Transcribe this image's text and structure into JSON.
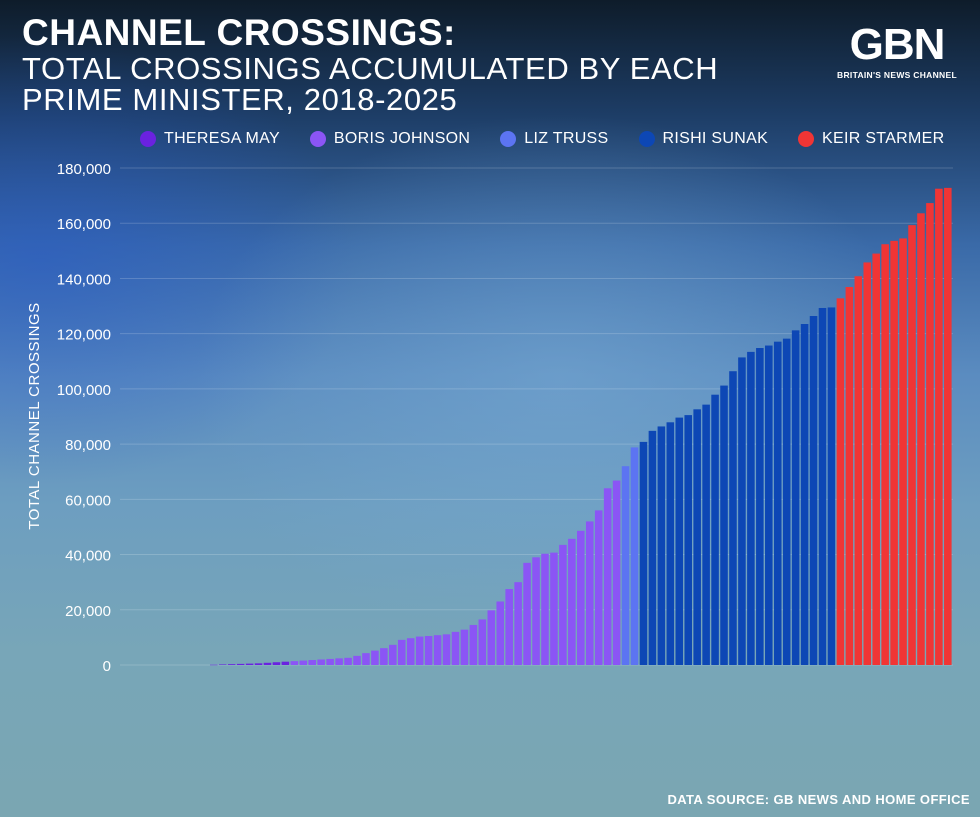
{
  "header": {
    "title_line1": "CHANNEL CROSSINGS:",
    "title_line2": "TOTAL CROSSINGS ACCUMULATED BY EACH",
    "title_line3": "PRIME MINISTER, 2018-2025"
  },
  "logo": {
    "mark": "GBN",
    "tagline": "BRITAIN'S NEWS CHANNEL"
  },
  "legend": {
    "items": [
      {
        "label": "THERESA MAY",
        "color": "#6a22e0"
      },
      {
        "label": "BORIS JOHNSON",
        "color": "#8b55f5"
      },
      {
        "label": "LIZ TRUSS",
        "color": "#5c74f2"
      },
      {
        "label": "RISHI SUNAK",
        "color": "#0d47b5"
      },
      {
        "label": "KEIR STARMER",
        "color": "#f03535"
      }
    ]
  },
  "footer": {
    "source": "DATA SOURCE: GB NEWS AND HOME OFFICE"
  },
  "chart_data": {
    "type": "bar",
    "ylabel": "TOTAL CHANNEL CROSSINGS",
    "ylim": [
      0,
      180000
    ],
    "yticks": [
      0,
      20000,
      40000,
      60000,
      80000,
      100000,
      120000,
      140000,
      160000,
      180000
    ],
    "ytick_labels": [
      "0",
      "20,000",
      "40,000",
      "60,000",
      "80,000",
      "100,000",
      "120,000",
      "140,000",
      "160,000",
      "180,000"
    ],
    "grid": true,
    "legend_position": "top",
    "series": [
      {
        "name": "THERESA MAY",
        "color": "#6a22e0",
        "values": [
          100,
          200,
          300,
          400,
          500,
          600,
          800,
          1000,
          1200
        ]
      },
      {
        "name": "BORIS JOHNSON",
        "color": "#8b55f5",
        "values": [
          1400,
          1600,
          1800,
          2000,
          2200,
          2400,
          2600,
          3300,
          4300,
          5200,
          6100,
          7300,
          9100,
          9700,
          10300,
          10500,
          10800,
          11100,
          12000,
          12800,
          14500,
          16500,
          19800,
          23000,
          27500,
          30000,
          37000,
          39000,
          40300,
          40700,
          43500,
          45700,
          48600,
          52000,
          56000,
          64000,
          66800
        ]
      },
      {
        "name": "LIZ TRUSS",
        "color": "#5c74f2",
        "values": [
          72000,
          78800
        ]
      },
      {
        "name": "RISHI SUNAK",
        "color": "#0d47b5",
        "values": [
          80800,
          84800,
          86400,
          87900,
          89600,
          90500,
          92600,
          94300,
          97900,
          101200,
          106400,
          111400,
          113400,
          114800,
          115700,
          117100,
          118200,
          121200,
          123500,
          126400,
          129300,
          129500
        ]
      },
      {
        "name": "KEIR STARMER",
        "color": "#f03535",
        "values": [
          132800,
          136900,
          140800,
          145800,
          149000,
          152400,
          153600,
          154500,
          159300,
          163600,
          167300,
          172500,
          172800
        ]
      }
    ]
  }
}
